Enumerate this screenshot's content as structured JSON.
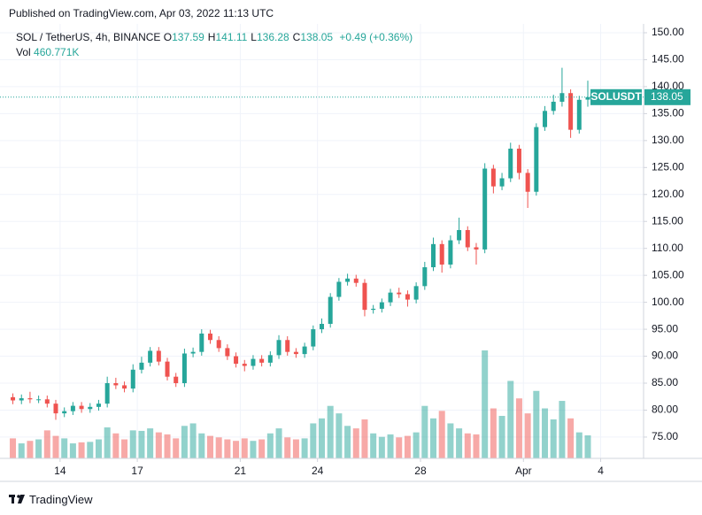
{
  "published": "Published on TradingView.com, Apr 03, 2022 11:13 UTC",
  "footer": "TradingView",
  "chart_data": {
    "type": "candlestick",
    "title": "SOL / TetherUS, 4h, BINANCE",
    "header_values": [
      {
        "key": "O",
        "value": 137.59
      },
      {
        "key": "H",
        "value": 141.11
      },
      {
        "key": "L",
        "value": 136.28
      },
      {
        "key": "C",
        "value": 138.05
      }
    ],
    "change": "+0.49",
    "change_pct": "(+0.36%)",
    "volume_name": "Vol",
    "volume_label": "460.771K",
    "price_label": {
      "symbol": "SOLUSDT",
      "value": 138.05
    },
    "up_color": "#26a69a",
    "down_color": "#ef5350",
    "open": [
      82.4,
      81.8,
      82.2,
      82.0,
      82.0,
      81.2,
      79.4,
      79.8,
      80.8,
      80.2,
      80.6,
      81.2,
      85.0,
      84.6,
      84.0,
      87.5,
      88.8,
      91.0,
      89.0,
      86.2,
      85.0,
      90.5,
      90.8,
      94.2,
      93.0,
      91.5,
      90.0,
      88.6,
      88.2,
      89.5,
      88.8,
      90.2,
      93.0,
      90.8,
      90.4,
      91.8,
      95.0,
      96.0,
      101.0,
      103.8,
      104.4,
      103.6,
      98.6,
      98.8,
      100.0,
      101.8,
      101.5,
      100.5,
      103.0,
      106.5,
      110.8,
      107.0,
      111.5,
      113.4,
      110.2,
      109.8,
      124.8,
      121.5,
      123.0,
      128.5,
      124.0,
      120.5,
      132.5,
      135.5,
      137.2,
      138.8,
      132.0,
      137.59
    ],
    "high": [
      83.1,
      82.9,
      83.4,
      82.7,
      82.7,
      81.9,
      80.5,
      81.5,
      81.5,
      81.3,
      81.9,
      86.2,
      86.0,
      85.3,
      88.5,
      89.9,
      91.7,
      91.7,
      89.7,
      86.9,
      91.4,
      91.6,
      95.0,
      94.9,
      93.7,
      92.2,
      90.7,
      89.3,
      90.2,
      90.2,
      90.9,
      93.9,
      93.7,
      91.5,
      92.5,
      95.7,
      97.0,
      101.7,
      104.5,
      105.3,
      105.1,
      104.3,
      99.5,
      100.7,
      102.5,
      102.7,
      102.2,
      103.7,
      107.5,
      112.0,
      111.5,
      112.4,
      115.7,
      114.1,
      111.0,
      125.8,
      125.5,
      124.0,
      129.6,
      129.2,
      124.7,
      133.2,
      136.4,
      138.5,
      143.5,
      139.5,
      138.3,
      141.11
    ],
    "low": [
      81.1,
      81.1,
      81.3,
      81.3,
      80.5,
      78.2,
      78.7,
      79.1,
      79.5,
      79.5,
      79.9,
      80.5,
      83.9,
      83.3,
      83.3,
      86.8,
      88.1,
      88.3,
      85.5,
      84.3,
      84.3,
      89.8,
      90.1,
      92.3,
      90.8,
      89.3,
      87.9,
      87.2,
      87.5,
      88.1,
      88.1,
      89.5,
      90.1,
      89.7,
      89.7,
      91.1,
      94.3,
      95.3,
      100.3,
      103.1,
      102.9,
      97.4,
      97.9,
      98.1,
      99.3,
      100.8,
      99.2,
      99.8,
      102.3,
      105.8,
      105.5,
      106.3,
      110.8,
      109.5,
      107.0,
      109.1,
      120.2,
      120.8,
      122.3,
      122.8,
      117.5,
      119.8,
      131.8,
      134.8,
      136.3,
      130.5,
      131.3,
      136.28
    ],
    "close": [
      81.8,
      82.2,
      82.0,
      82.0,
      81.2,
      79.4,
      79.8,
      80.8,
      80.2,
      80.6,
      81.2,
      85.0,
      84.6,
      84.0,
      87.5,
      88.8,
      91.0,
      89.0,
      86.2,
      85.0,
      90.5,
      90.8,
      94.2,
      93.0,
      91.5,
      90.0,
      88.6,
      88.2,
      89.5,
      88.8,
      90.2,
      93.0,
      90.8,
      90.4,
      91.8,
      95.0,
      96.0,
      101.0,
      103.8,
      104.4,
      103.6,
      98.6,
      98.8,
      100.0,
      101.8,
      101.5,
      100.5,
      103.0,
      106.5,
      110.8,
      107.0,
      111.5,
      113.4,
      110.2,
      109.8,
      124.8,
      121.5,
      123.0,
      128.5,
      124.0,
      120.5,
      132.5,
      135.5,
      137.2,
      138.8,
      132.0,
      137.56,
      138.05
    ],
    "volume": [
      400,
      300,
      350,
      380,
      560,
      450,
      400,
      300,
      320,
      330,
      380,
      620,
      500,
      380,
      560,
      550,
      600,
      520,
      480,
      400,
      650,
      700,
      500,
      450,
      420,
      380,
      350,
      400,
      350,
      380,
      500,
      600,
      420,
      380,
      400,
      700,
      800,
      1050,
      900,
      650,
      600,
      780,
      500,
      430,
      480,
      420,
      450,
      520,
      1050,
      800,
      950,
      700,
      600,
      500,
      480,
      2160,
      1000,
      850,
      1550,
      1200,
      900,
      1350,
      1000,
      780,
      1150,
      800,
      520,
      460.771
    ],
    "xlim": [
      -1,
      74
    ],
    "xticks": [
      {
        "value": 6,
        "label": "14"
      },
      {
        "value": 15,
        "label": "17"
      },
      {
        "value": 27,
        "label": "21"
      },
      {
        "value": 36,
        "label": "24"
      },
      {
        "value": 48,
        "label": "28"
      },
      {
        "value": 60,
        "label": "Apr"
      },
      {
        "value": 69,
        "label": "4"
      }
    ],
    "ylim": [
      71.05,
      151.64
    ],
    "yticks": [
      {
        "value": 75,
        "label": "75.00"
      },
      {
        "value": 80,
        "label": "80.00"
      },
      {
        "value": 85,
        "label": "85.00"
      },
      {
        "value": 90,
        "label": "90.00"
      },
      {
        "value": 95,
        "label": "95.00"
      },
      {
        "value": 100,
        "label": "100.00"
      },
      {
        "value": 105,
        "label": "105.00"
      },
      {
        "value": 110,
        "label": "110.00"
      },
      {
        "value": 115,
        "label": "115.00"
      },
      {
        "value": 120,
        "label": "120.00"
      },
      {
        "value": 125,
        "label": "125.00"
      },
      {
        "value": 130,
        "label": "130.00"
      },
      {
        "value": 135,
        "label": "135.00"
      },
      {
        "value": 140,
        "label": "140.00"
      },
      {
        "value": 145,
        "label": "145.00"
      },
      {
        "value": 150,
        "label": "150.00"
      }
    ],
    "grid": true
  }
}
